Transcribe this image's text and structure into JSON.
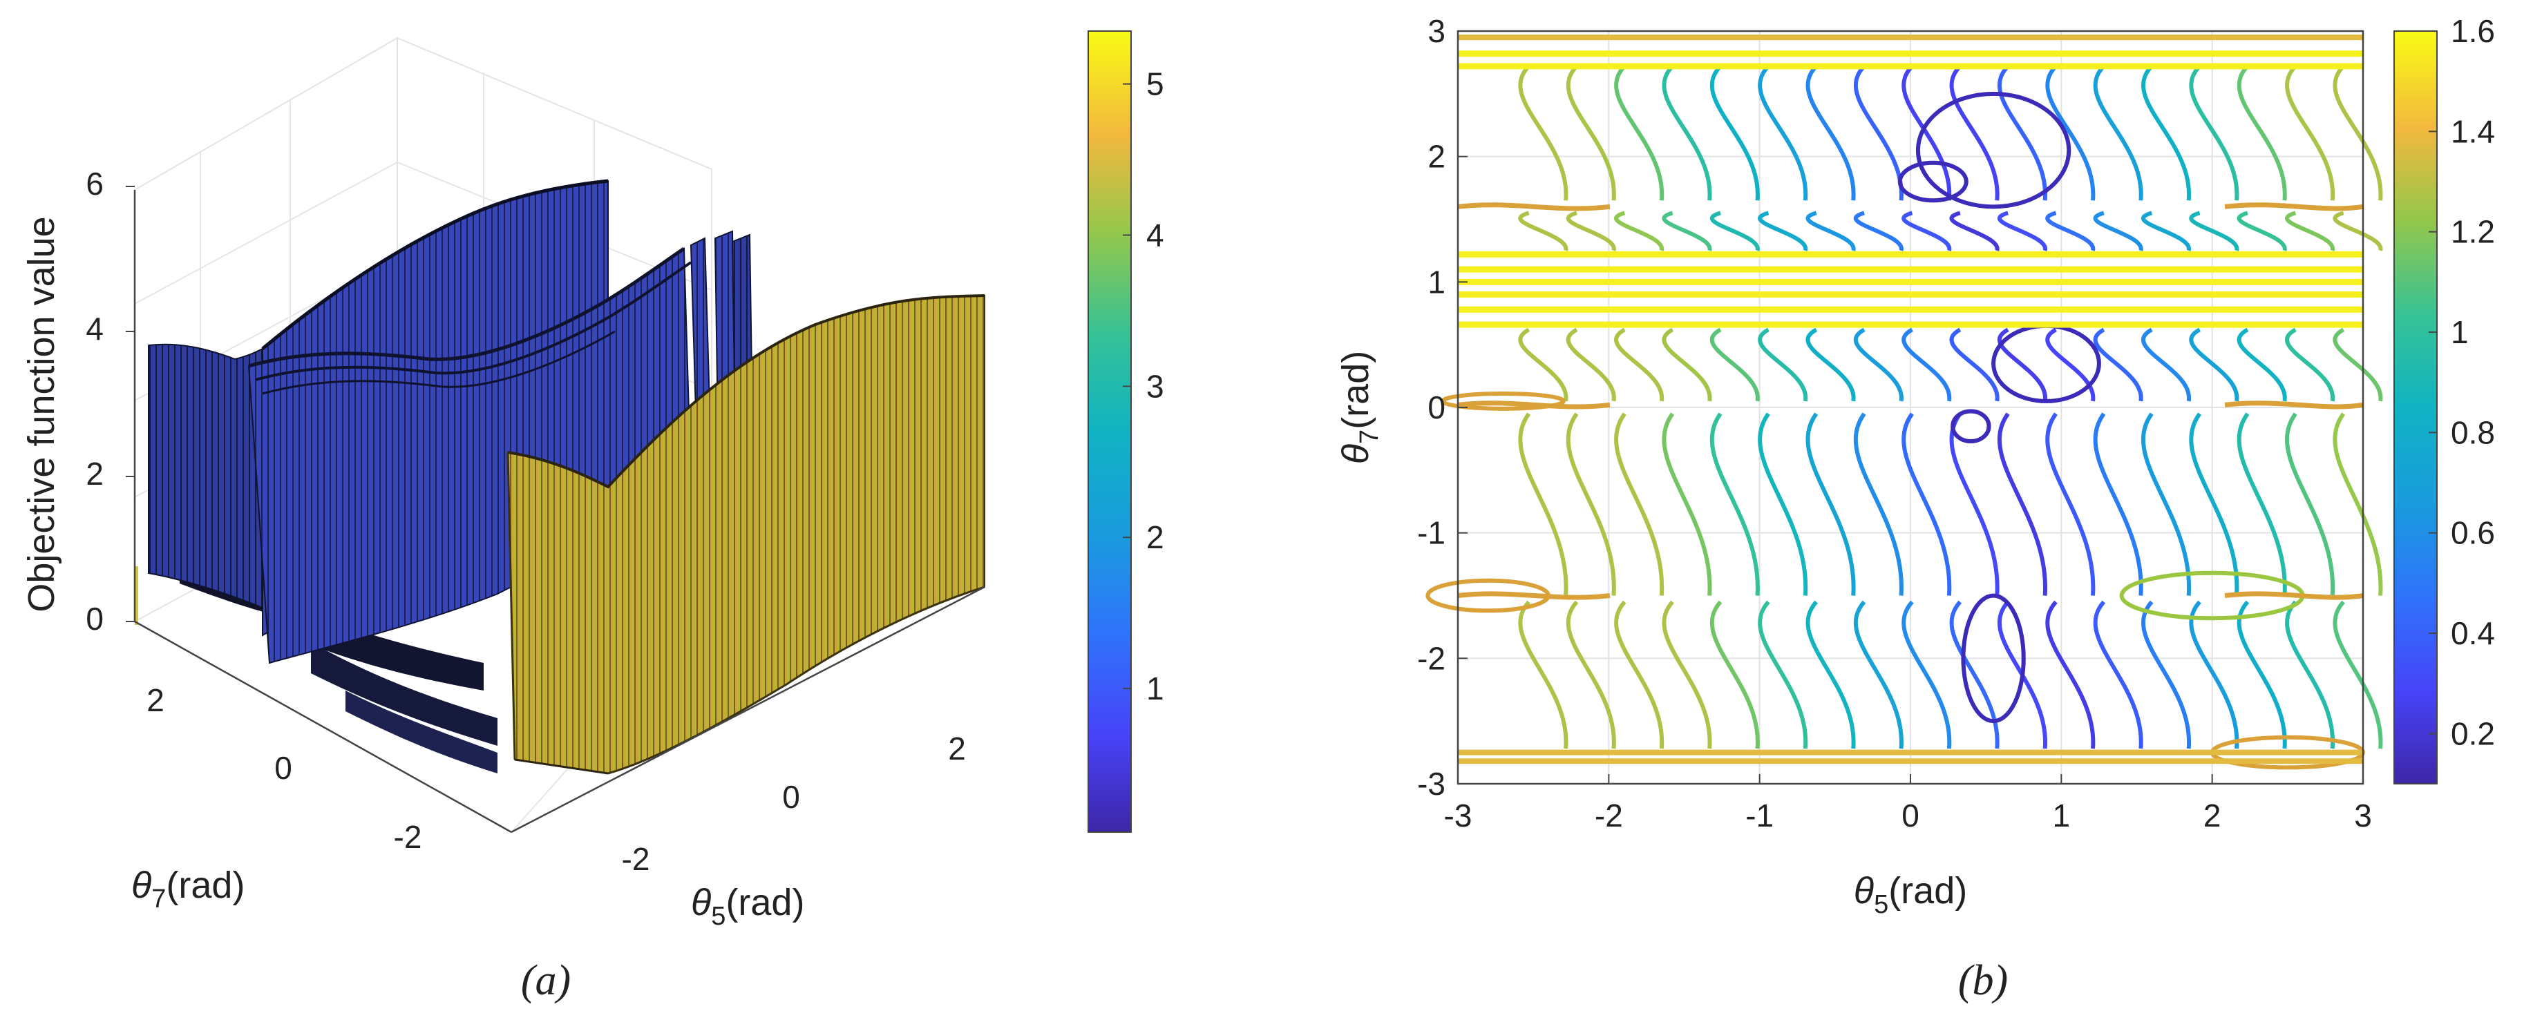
{
  "chart_data": [
    {
      "type": "surface3d",
      "panel_label": "(a)",
      "zlabel": "Objective function value",
      "xlabel": "θ5(rad)",
      "ylabel": "θ7(rad)",
      "x_symbol": "θ",
      "x_sub": "5",
      "x_unit": "(rad)",
      "y_symbol": "θ",
      "y_sub": "7",
      "y_unit": "(rad)",
      "xlim": [
        -3,
        3
      ],
      "ylim": [
        -3,
        3
      ],
      "zlim": [
        0,
        6
      ],
      "x_ticks": [
        "-2",
        "0",
        "2"
      ],
      "y_ticks": [
        "-2",
        "0",
        "2"
      ],
      "z_ticks": [
        "0",
        "2",
        "4",
        "6"
      ],
      "colorbar": {
        "min": 0.05,
        "max": 5.35,
        "ticks": [
          "1",
          "2",
          "3",
          "4",
          "5"
        ],
        "colormap": "parula"
      },
      "walls": [
        {
          "name": "blue-wall-back",
          "z_top_range": [
            3.4,
            5.9
          ],
          "color_value": 0.6
        },
        {
          "name": "blue-wall-mid",
          "z_top_range": [
            2.9,
            4.2
          ],
          "color_value": 0.7
        },
        {
          "name": "yellow-wall-front",
          "z_top_range": [
            3.4,
            4.6
          ],
          "color_value": 4.4
        }
      ]
    },
    {
      "type": "contour",
      "panel_label": "(b)",
      "xlabel": "θ5(rad)",
      "ylabel": "θ7(rad)",
      "x_symbol": "θ",
      "x_sub": "5",
      "x_unit": "(rad)",
      "y_symbol": "θ",
      "y_sub": "7",
      "y_unit": "(rad)",
      "xlim": [
        -3,
        3
      ],
      "ylim": [
        -3,
        3
      ],
      "x_ticks": [
        "-3",
        "-2",
        "-1",
        "0",
        "1",
        "2",
        "3"
      ],
      "y_ticks": [
        "3",
        "2",
        "1",
        "0",
        "-1",
        "-2",
        "-3"
      ],
      "grid": true,
      "colorbar": {
        "min": 0.1,
        "max": 1.6,
        "ticks": [
          "1.6",
          "1.4",
          "1.2",
          "1",
          "0.8",
          "0.6",
          "0.4",
          "0.2"
        ],
        "colormap": "parula"
      },
      "horizontal_band_levels_y": [
        2.72,
        2.82,
        1.22,
        1.1,
        1.0,
        0.9,
        0.78,
        0.66
      ],
      "contour_lines_per_band": 18
    }
  ]
}
